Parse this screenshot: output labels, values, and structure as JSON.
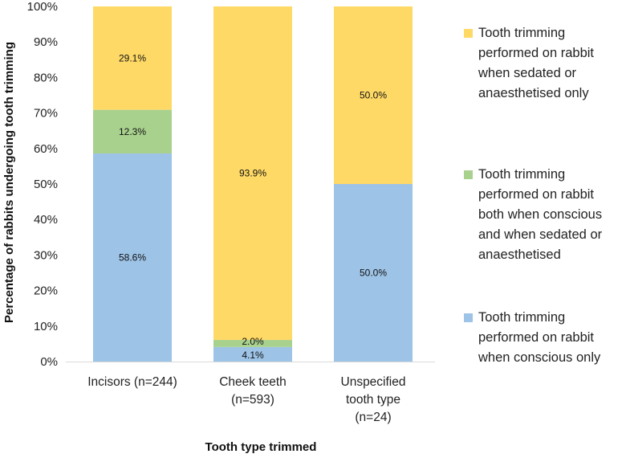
{
  "chart_data": {
    "type": "bar",
    "stacked": true,
    "percent": true,
    "xlabel": "Tooth type trimmed",
    "ylabel": "Percentage of rabbits undergoing  tooth trimming",
    "ylim": [
      0,
      100
    ],
    "yticks": [
      "0%",
      "10%",
      "20%",
      "30%",
      "40%",
      "50%",
      "60%",
      "70%",
      "80%",
      "90%",
      "100%"
    ],
    "categories": [
      [
        "Incisors (n=244)"
      ],
      [
        "Cheek teeth",
        "(n=593)"
      ],
      [
        "Unspecified",
        "tooth type",
        "(n=24)"
      ]
    ],
    "series": [
      {
        "name": "Tooth trimming performed on rabbit when conscious only",
        "legend_lines": [
          "Tooth trimming",
          "performed on rabbit",
          "when conscious only"
        ],
        "color": "#9dc3e6",
        "values": [
          58.6,
          4.1,
          50.0
        ],
        "labels": [
          "58.6%",
          "4.1%",
          "50.0%"
        ]
      },
      {
        "name": "Tooth trimming performed on rabbit both when conscious and when sedated or anaesthetised",
        "legend_lines": [
          "Tooth trimming",
          "performed on rabbit",
          "both when conscious",
          "and when sedated or",
          "anaesthetised"
        ],
        "color": "#a9d18e",
        "values": [
          12.3,
          2.0,
          0
        ],
        "labels": [
          "12.3%",
          "2.0%",
          ""
        ]
      },
      {
        "name": "Tooth trimming performed on rabbit when sedated or anaesthetised only",
        "legend_lines": [
          "Tooth trimming",
          "performed on rabbit",
          "when sedated or",
          "anaesthetised only"
        ],
        "color": "#ffd966",
        "values": [
          29.1,
          93.9,
          50.0
        ],
        "labels": [
          "29.1%",
          "93.9%",
          "50.0%"
        ]
      }
    ],
    "legend_order": [
      2,
      1,
      0
    ],
    "legend_position": "right"
  }
}
